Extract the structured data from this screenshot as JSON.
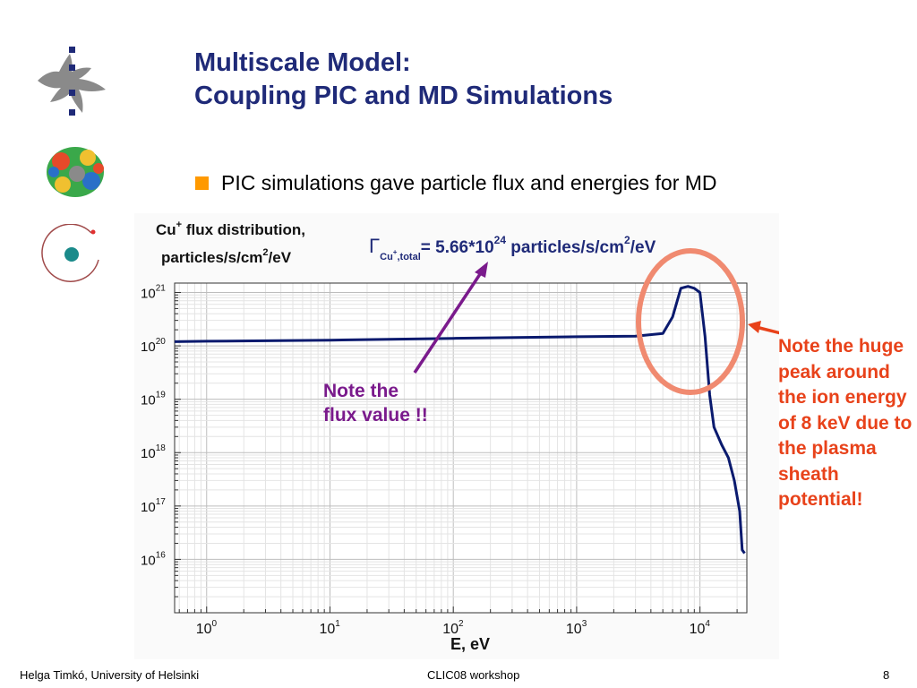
{
  "slide": {
    "title_line1": "Multiscale Model:",
    "title_line2": "Coupling PIC and MD Simulations",
    "bullet": "PIC simulations gave particle flux and energies for MD",
    "note_flux_line1": "Note the",
    "note_flux_line2": "flux value !!",
    "note_peak": "Note the huge peak around the ion energy of 8 keV due to the plasma sheath potential!",
    "footer_left": "Helga Timkó, University of Helsinki",
    "footer_center": "CLIC08 workshop",
    "footer_right": "8"
  },
  "colors": {
    "title": "#1f2a78",
    "bullet": "#ff9900",
    "curve": "#0a1a6e",
    "flux_note": "#7a1a8c",
    "peak_note": "#e8421a",
    "circle": "#f08a70"
  },
  "icons": [
    "university-logo-icon",
    "molecule-icon",
    "circular-arrow-icon"
  ],
  "chart_data": {
    "type": "line",
    "ylabel_line1": "Cu",
    "ylabel_sup1": "+",
    "ylabel_line1b": " flux distribution,",
    "ylabel_line2": "particles/s/cm",
    "ylabel_sup2": "2",
    "ylabel_line2b": "/eV",
    "annotation_gamma": "Γ",
    "annotation_sub": "Cu",
    "annotation_subsup": "+",
    "annotation_sub2": ",total",
    "annotation_eq": "= 5.66*10",
    "annotation_exp": "24",
    "annotation_units": " particles/s/cm",
    "annotation_units_sup": "2",
    "annotation_units_end": "/eV",
    "xlabel": "E, eV",
    "x_scale": "log",
    "y_scale": "log",
    "xlim": [
      0.55,
      24000
    ],
    "ylim": [
      1000000000000000.0,
      1.5e+21
    ],
    "grid": true,
    "x_tick_exponents": [
      "0",
      "1",
      "2",
      "3",
      "4"
    ],
    "y_tick_exponents": [
      "21",
      "20",
      "19",
      "18",
      "17",
      "16"
    ],
    "tick_base": "10",
    "series": [
      {
        "x": [
          0.55,
          1,
          10,
          100,
          1000,
          3000,
          5000,
          6000,
          7000,
          8000,
          9000,
          10000,
          11000,
          12000,
          13000,
          15000,
          17000,
          19000,
          21000,
          22000,
          23000
        ],
        "y": [
          1.2e+20,
          1.22e+20,
          1.28e+20,
          1.38e+20,
          1.48e+20,
          1.52e+20,
          1.7e+20,
          3.5e+20,
          1.2e+21,
          1.3e+21,
          1.2e+21,
          1e+21,
          1.5e+20,
          1.2e+19,
          3e+18,
          1.4e+18,
          8e+17,
          3e+17,
          8e+16,
          1.5e+16,
          1.3e+16
        ]
      }
    ]
  }
}
